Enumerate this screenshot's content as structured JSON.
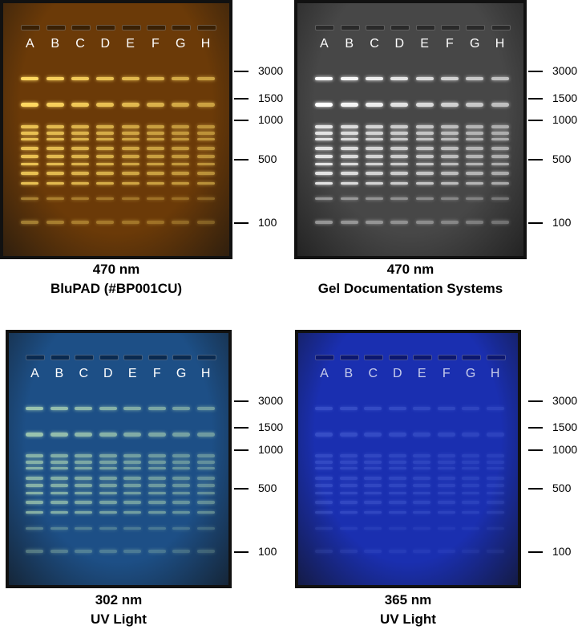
{
  "lanes": [
    "A",
    "B",
    "C",
    "D",
    "E",
    "F",
    "G",
    "H"
  ],
  "markers": [
    "3000",
    "1500",
    "1000",
    "500",
    "100"
  ],
  "panels": [
    {
      "id": "bluepad",
      "caption_line1": "470 nm",
      "caption_line2": "BluPAD (#BP001CU)",
      "gel_color": "#6b3a08",
      "band_color": "#ffd860",
      "well_color": "#3a2004",
      "band_intensity": 1.0
    },
    {
      "id": "geldoc",
      "caption_line1": "470 nm",
      "caption_line2": "Gel Documentation Systems",
      "gel_color": "#474747",
      "band_color": "#ffffff",
      "well_color": "#2a2a2a",
      "band_intensity": 1.0
    },
    {
      "id": "uv302",
      "caption_line1": "302 nm",
      "caption_line2": "UV Light",
      "gel_color": "#1d4f86",
      "band_color": "#b8e0b8",
      "well_color": "#0a2a50",
      "band_intensity": 0.8
    },
    {
      "id": "uv365",
      "caption_line1": "365 nm",
      "caption_line2": "UV Light",
      "gel_color": "#1a2fb0",
      "band_color": "#7f9bff",
      "well_color": "#0c1770",
      "band_intensity": 0.28
    }
  ]
}
